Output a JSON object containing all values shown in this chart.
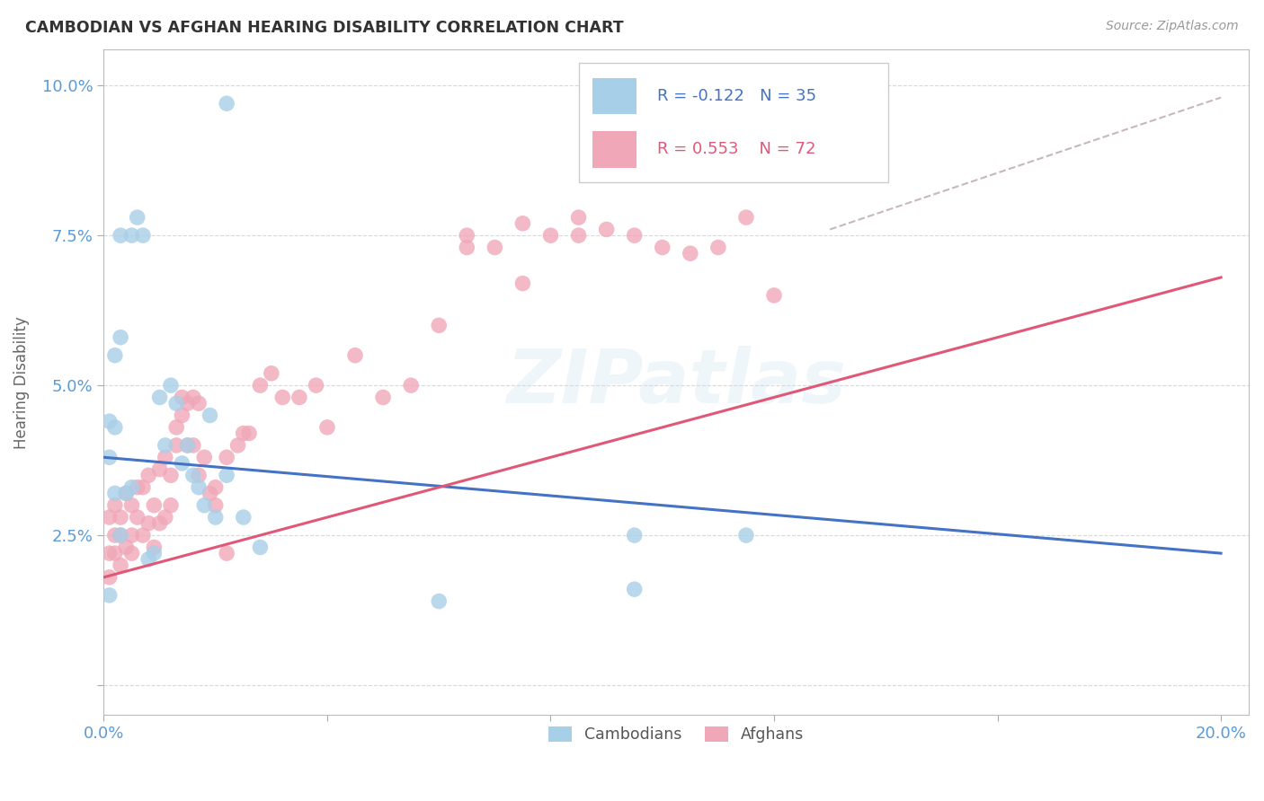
{
  "title": "CAMBODIAN VS AFGHAN HEARING DISABILITY CORRELATION CHART",
  "source": "Source: ZipAtlas.com",
  "ylabel": "Hearing Disability",
  "background_color": "#ffffff",
  "grid_color": "#d0d0d0",
  "watermark": "ZIPatlas",
  "legend_R1": "R = -0.122",
  "legend_N1": "N = 35",
  "legend_R2": "R = 0.553",
  "legend_N2": "N = 72",
  "cambodian_color": "#a8cfe8",
  "afghan_color": "#f0a8b8",
  "trendline_cambodian_color": "#4472c4",
  "trendline_afghan_color": "#e05878",
  "trendline_dashed_color": "#c8b8b8",
  "camb_trend_x": [
    0.0,
    0.2
  ],
  "camb_trend_y": [
    0.038,
    0.022
  ],
  "afghan_trend_x": [
    0.0,
    0.2
  ],
  "afghan_trend_y": [
    0.018,
    0.068
  ],
  "dashed_trend_x": [
    0.13,
    0.2
  ],
  "dashed_trend_y": [
    0.076,
    0.098
  ],
  "xlim": [
    0.0,
    0.205
  ],
  "ylim": [
    -0.005,
    0.106
  ],
  "camb_x": [
    0.022,
    0.001,
    0.002,
    0.003,
    0.005,
    0.006,
    0.007,
    0.008,
    0.009,
    0.01,
    0.011,
    0.012,
    0.013,
    0.014,
    0.015,
    0.002,
    0.003,
    0.016,
    0.017,
    0.018,
    0.019,
    0.02,
    0.022,
    0.025,
    0.028,
    0.001,
    0.002,
    0.003,
    0.004,
    0.005,
    0.095,
    0.115,
    0.001,
    0.095,
    0.06
  ],
  "camb_y": [
    0.097,
    0.044,
    0.043,
    0.058,
    0.075,
    0.078,
    0.075,
    0.021,
    0.022,
    0.048,
    0.04,
    0.05,
    0.047,
    0.037,
    0.04,
    0.055,
    0.075,
    0.035,
    0.033,
    0.03,
    0.045,
    0.028,
    0.035,
    0.028,
    0.023,
    0.038,
    0.032,
    0.025,
    0.032,
    0.033,
    0.025,
    0.025,
    0.015,
    0.016,
    0.014
  ],
  "afghan_x": [
    0.001,
    0.001,
    0.001,
    0.002,
    0.002,
    0.002,
    0.003,
    0.003,
    0.003,
    0.004,
    0.004,
    0.005,
    0.005,
    0.005,
    0.006,
    0.006,
    0.007,
    0.007,
    0.008,
    0.008,
    0.009,
    0.009,
    0.01,
    0.01,
    0.011,
    0.011,
    0.012,
    0.012,
    0.013,
    0.013,
    0.014,
    0.014,
    0.015,
    0.015,
    0.016,
    0.016,
    0.017,
    0.017,
    0.018,
    0.019,
    0.02,
    0.02,
    0.022,
    0.022,
    0.024,
    0.025,
    0.026,
    0.028,
    0.03,
    0.032,
    0.035,
    0.038,
    0.04,
    0.045,
    0.05,
    0.055,
    0.06,
    0.065,
    0.07,
    0.075,
    0.08,
    0.085,
    0.09,
    0.095,
    0.1,
    0.105,
    0.11,
    0.115,
    0.12,
    0.065,
    0.075,
    0.085
  ],
  "afghan_y": [
    0.028,
    0.022,
    0.018,
    0.025,
    0.022,
    0.03,
    0.025,
    0.02,
    0.028,
    0.023,
    0.032,
    0.03,
    0.025,
    0.022,
    0.028,
    0.033,
    0.025,
    0.033,
    0.027,
    0.035,
    0.023,
    0.03,
    0.027,
    0.036,
    0.028,
    0.038,
    0.035,
    0.03,
    0.04,
    0.043,
    0.045,
    0.048,
    0.047,
    0.04,
    0.04,
    0.048,
    0.035,
    0.047,
    0.038,
    0.032,
    0.033,
    0.03,
    0.038,
    0.022,
    0.04,
    0.042,
    0.042,
    0.05,
    0.052,
    0.048,
    0.048,
    0.05,
    0.043,
    0.055,
    0.048,
    0.05,
    0.06,
    0.073,
    0.073,
    0.067,
    0.075,
    0.075,
    0.076,
    0.075,
    0.073,
    0.072,
    0.073,
    0.078,
    0.065,
    0.075,
    0.077,
    0.078
  ]
}
